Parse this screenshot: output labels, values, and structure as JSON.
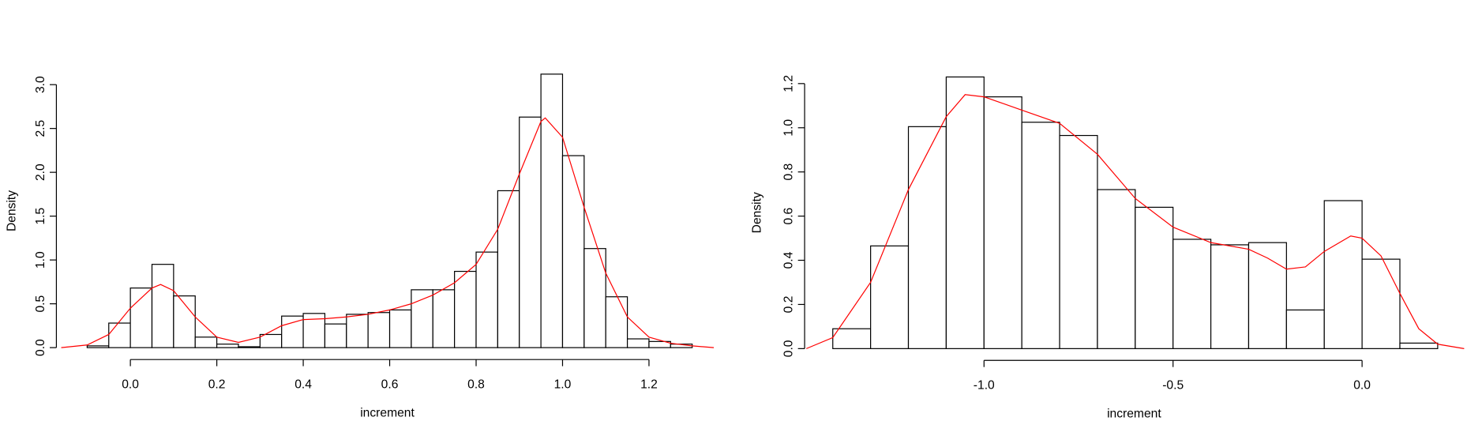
{
  "chart_data": [
    {
      "type": "histogram",
      "xlabel": "increment",
      "ylabel": "Density",
      "bins": [
        -0.1,
        -0.05,
        0,
        0.05,
        0.1,
        0.15,
        0.2,
        0.25,
        0.3,
        0.35,
        0.4,
        0.45,
        0.5,
        0.55,
        0.6,
        0.65,
        0.7,
        0.75,
        0.8,
        0.85,
        0.9,
        0.95,
        1.0,
        1.05,
        1.1,
        1.15,
        1.2,
        1.25,
        1.3
      ],
      "values": [
        0.02,
        0.28,
        0.68,
        0.95,
        0.59,
        0.12,
        0.04,
        0.01,
        0.15,
        0.36,
        0.39,
        0.27,
        0.38,
        0.4,
        0.43,
        0.66,
        0.66,
        0.87,
        1.09,
        1.79,
        2.63,
        3.12,
        2.19,
        1.13,
        0.58,
        0.1,
        0.07,
        0.04
      ],
      "color": "#ffffff",
      "edgecolor": "#000000",
      "density": {
        "color": "#ff0000",
        "x": [
          -0.16,
          -0.1,
          -0.05,
          0,
          0.05,
          0.07,
          0.1,
          0.15,
          0.2,
          0.25,
          0.3,
          0.35,
          0.4,
          0.45,
          0.5,
          0.55,
          0.6,
          0.65,
          0.7,
          0.75,
          0.8,
          0.85,
          0.9,
          0.95,
          0.96,
          1.0,
          1.05,
          1.1,
          1.15,
          1.2,
          1.25,
          1.3,
          1.35
        ],
        "y": [
          0,
          0.03,
          0.15,
          0.45,
          0.68,
          0.72,
          0.65,
          0.35,
          0.12,
          0.06,
          0.12,
          0.25,
          0.32,
          0.33,
          0.35,
          0.38,
          0.43,
          0.5,
          0.6,
          0.74,
          0.95,
          1.35,
          1.98,
          2.58,
          2.62,
          2.4,
          1.6,
          0.85,
          0.35,
          0.12,
          0.05,
          0.02,
          0
        ]
      },
      "xlim": [
        -0.169,
        1.358
      ],
      "ylim": [
        -0.125,
        3.245
      ],
      "xticks": [
        {
          "value": 0,
          "label": "0.0"
        },
        0.2,
        0.4,
        0.6,
        0.8,
        {
          "value": 1,
          "label": "1.0"
        },
        1.2
      ],
      "yticks": [
        {
          "value": 0,
          "label": "0.0"
        },
        0.5,
        {
          "value": 1,
          "label": "1.0"
        },
        1.5,
        {
          "value": 2,
          "label": "2.0"
        },
        2.5,
        {
          "value": 3,
          "label": "3.0"
        }
      ]
    },
    {
      "type": "histogram",
      "xlabel": "increment",
      "ylabel": "Density",
      "bins": [
        -1.4,
        -1.3,
        -1.2,
        -1.1,
        -1.0,
        -0.9,
        -0.8,
        -0.7,
        -0.6,
        -0.5,
        -0.4,
        -0.3,
        -0.2,
        -0.1,
        0,
        0.1,
        0.2
      ],
      "values": [
        0.09,
        0.465,
        1.005,
        1.23,
        1.14,
        1.025,
        0.965,
        0.72,
        0.64,
        0.495,
        0.47,
        0.48,
        0.175,
        0.67,
        0.405,
        0.025
      ],
      "color": "#ffffff",
      "edgecolor": "#000000",
      "density": {
        "color": "#ff0000",
        "x": [
          -1.47,
          -1.4,
          -1.3,
          -1.2,
          -1.1,
          -1.05,
          -1.0,
          -0.9,
          -0.8,
          -0.7,
          -0.6,
          -0.5,
          -0.4,
          -0.3,
          -0.25,
          -0.2,
          -0.15,
          -0.1,
          -0.03,
          0,
          0.05,
          0.1,
          0.15,
          0.2,
          0.27
        ],
        "y": [
          0,
          0.05,
          0.3,
          0.72,
          1.05,
          1.15,
          1.14,
          1.08,
          1.02,
          0.88,
          0.68,
          0.55,
          0.48,
          0.45,
          0.41,
          0.36,
          0.37,
          0.44,
          0.51,
          0.5,
          0.42,
          0.25,
          0.09,
          0.02,
          0
        ]
      },
      "xlim": [
        -1.472,
        0.266
      ],
      "ylim": [
        -0.049,
        1.28
      ],
      "xticks": [
        {
          "value": -1,
          "label": "-1.0"
        },
        -0.5,
        {
          "value": 0,
          "label": "0.0"
        }
      ],
      "yticks": [
        {
          "value": 0,
          "label": "0.0"
        },
        0.2,
        0.4,
        0.6,
        0.8,
        {
          "value": 1,
          "label": "1.0"
        },
        1.2
      ]
    }
  ]
}
